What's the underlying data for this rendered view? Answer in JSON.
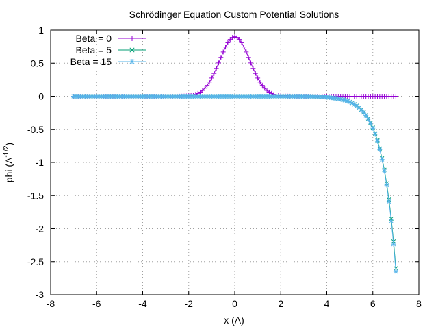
{
  "chart_data": {
    "type": "line",
    "title": "Schrödinger Equation Custom Potential Solutions",
    "xlabel_main": "x (A)",
    "ylabel_base": "phi (A",
    "ylabel_sup": "-1/2",
    "ylabel_end": ")",
    "xlim": [
      -8,
      8
    ],
    "ylim": [
      -3,
      1
    ],
    "xticks": [
      -8,
      -6,
      -4,
      -2,
      0,
      2,
      4,
      6,
      8
    ],
    "yticks": [
      -3,
      -2.5,
      -2,
      -1.5,
      -1,
      -0.5,
      0,
      0.5,
      1
    ],
    "grid": true,
    "legend_position": "top-left",
    "x_start": -7,
    "x_end": 7,
    "x_step": 0.1,
    "series": [
      {
        "name": "Beta = 0",
        "color": "#9400d3",
        "marker": "plus",
        "description": "gaussian peak centered at 0",
        "peak": 0.9,
        "width": 0.65
      },
      {
        "name": "Beta = 5",
        "color": "#009e73",
        "marker": "cross",
        "description": "flat near zero, diverging near x=7",
        "tail_amplitude": -2.6,
        "tail_scale": 1.0
      },
      {
        "name": "Beta = 15",
        "color": "#56b4e9",
        "marker": "star",
        "description": "flat near zero, diverging near x=7",
        "tail_amplitude": -2.65,
        "tail_scale": 1.0
      }
    ]
  }
}
